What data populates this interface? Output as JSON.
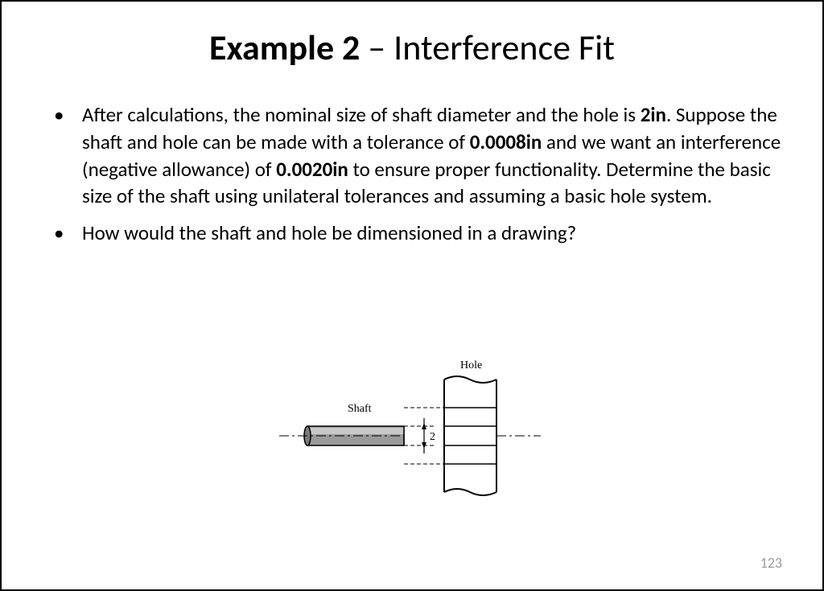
{
  "title": {
    "bold_part": "Example 2",
    "separator": " – ",
    "regular_part": "Interference Fit"
  },
  "bullets": [
    {
      "segments": [
        {
          "text": "After calculations, the nominal size of shaft diameter and the hole is ",
          "bold": false
        },
        {
          "text": "2in",
          "bold": true
        },
        {
          "text": ". Suppose the shaft and hole can be made with a tolerance of ",
          "bold": false
        },
        {
          "text": "0.0008in",
          "bold": true
        },
        {
          "text": " and we want an interference (negative allowance) of ",
          "bold": false
        },
        {
          "text": "0.0020in",
          "bold": true
        },
        {
          "text": " to ensure proper functionality.  Determine the basic size of the shaft using unilateral tolerances and assuming a basic hole system.",
          "bold": false
        }
      ]
    },
    {
      "segments": [
        {
          "text": "How would the shaft and hole be dimensioned in a drawing?",
          "bold": false
        }
      ]
    }
  ],
  "diagram": {
    "hole_label": "Hole",
    "shaft_label": "Shaft",
    "dimension_value": "2",
    "colors": {
      "stroke": "#000000",
      "shaft_fill": "#9a9a9a",
      "shaft_fill_light": "#c8c8c8",
      "background": "#ffffff"
    },
    "font_family": "Times New Roman, serif",
    "label_fontsize": 14,
    "dim_fontsize": 14
  },
  "page_number": "123",
  "page_number_color": "#9b9b9b"
}
